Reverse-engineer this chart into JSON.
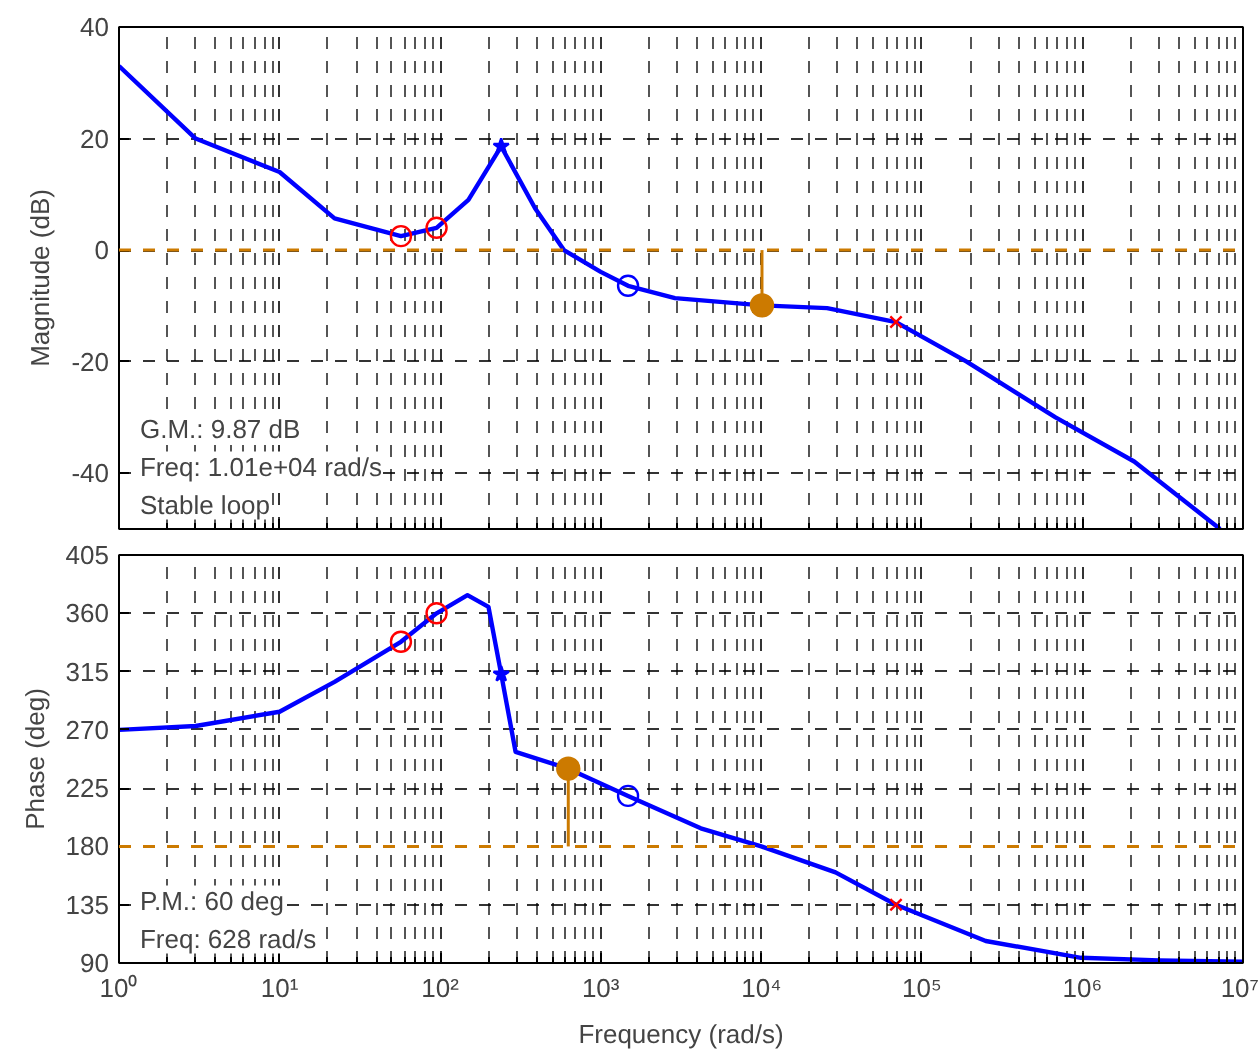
{
  "chart_data": [
    {
      "type": "line",
      "ylabel": "Magnitude (dB)",
      "xlim": [
        1,
        10000000
      ],
      "ylim": [
        -50,
        40
      ],
      "log": "x",
      "grid": true,
      "tick_labels": "y",
      "xticks": [
        {
          "value": 1,
          "label": null
        },
        {
          "value": 10,
          "label": null
        },
        {
          "value": 100,
          "label": null
        },
        {
          "value": 1000,
          "label": null
        },
        {
          "value": 10000,
          "label": null
        },
        {
          "value": 100000,
          "label": null
        },
        {
          "value": 1000000,
          "label": null
        },
        {
          "value": 10000000,
          "label": null
        }
      ],
      "yticks": [
        -40,
        -20,
        0,
        20,
        40
      ],
      "ref_lines": [
        {
          "axis": "y",
          "value": 0,
          "color": "#cc7a00",
          "line_style": "dashed"
        }
      ],
      "annotations": [
        "G.M.: 9.87 dB",
        "Freq: 1.01e+04 rad/s",
        "Stable loop"
      ],
      "series": [
        {
          "color": "#0000ff",
          "x": [
            1,
            3,
            10,
            22,
            57,
            95,
            150,
            240,
            390,
            590,
            1000,
            1480,
            2900,
            10100,
            25700,
            69000,
            190000,
            680000,
            2100000,
            7200000
          ],
          "values": [
            33,
            20,
            14,
            5.7,
            2.5,
            4,
            9,
            18.6,
            7.5,
            0,
            -3.9,
            -6.4,
            -8.6,
            -9.9,
            -10.4,
            -12.9,
            -20,
            -30,
            -37.9,
            -50
          ]
        },
        {
          "type": "scatter",
          "marker": "circle",
          "color": "#ff0000",
          "x": [
            57,
            95
          ],
          "values": [
            2.5,
            4
          ]
        },
        {
          "type": "scatter",
          "marker": "star",
          "color": "#0000ff",
          "x": [
            240
          ],
          "values": [
            18.6
          ]
        },
        {
          "type": "scatter",
          "marker": "circle",
          "color": "#0000ff",
          "x": [
            1480
          ],
          "values": [
            -6.4
          ]
        },
        {
          "type": "scatter",
          "marker": "cross",
          "color": "#ff0000",
          "x": [
            69000
          ],
          "values": [
            -12.9
          ]
        },
        {
          "type": "scatter",
          "marker": "circle",
          "color": "#cc7a00",
          "x": [
            10100
          ],
          "values": [
            -9.9
          ],
          "errors": [
            [
              -9.9,
              0
            ]
          ]
        }
      ]
    },
    {
      "type": "line",
      "ylabel": "Phase (deg)",
      "xlabel": "Frequency (rad/s)",
      "xlim": [
        1,
        10000000
      ],
      "ylim": [
        90,
        405
      ],
      "log": "x",
      "grid": true,
      "xticks": [
        {
          "value": 1,
          "label": "10⁰"
        },
        {
          "value": 10,
          "label": "10¹"
        },
        {
          "value": 100,
          "label": "10²"
        },
        {
          "value": 1000,
          "label": "10³"
        },
        {
          "value": 10000,
          "label": "10⁴"
        },
        {
          "value": 100000,
          "label": "10⁵"
        },
        {
          "value": 1000000,
          "label": "10⁶"
        },
        {
          "value": 10000000,
          "label": "10⁷"
        }
      ],
      "yticks": [
        90,
        135,
        180,
        225,
        270,
        315,
        360,
        405
      ],
      "ref_lines": [
        {
          "axis": "y",
          "value": 180,
          "color": "#cc7a00",
          "line_style": "dashed"
        }
      ],
      "annotations": [
        "P.M.: 60 deg",
        "Freq: 628 rad/s"
      ],
      "series": [
        {
          "color": "#0000ff",
          "x": [
            1,
            3,
            10,
            22,
            57,
            95,
            148,
            200,
            240,
            295,
            628,
            1480,
            4200,
            10000,
            29000,
            69000,
            250000,
            980000,
            3000000,
            10000000
          ],
          "values": [
            270,
            273,
            284,
            307,
            338,
            360,
            374,
            365,
            313,
            253,
            240,
            219,
            194,
            180,
            160,
            135,
            107,
            94,
            92,
            91
          ]
        },
        {
          "type": "scatter",
          "marker": "circle",
          "color": "#ff0000",
          "x": [
            57,
            95
          ],
          "values": [
            338,
            360
          ]
        },
        {
          "type": "scatter",
          "marker": "star",
          "color": "#0000ff",
          "x": [
            240
          ],
          "values": [
            313
          ]
        },
        {
          "type": "scatter",
          "marker": "circle",
          "color": "#0000ff",
          "x": [
            1480
          ],
          "values": [
            219
          ]
        },
        {
          "type": "scatter",
          "marker": "cross",
          "color": "#ff0000",
          "x": [
            69000
          ],
          "values": [
            135
          ]
        },
        {
          "type": "scatter",
          "marker": "circle",
          "color": "#cc7a00",
          "x": [
            628
          ],
          "values": [
            240
          ],
          "errors": [
            [
              180,
              240
            ]
          ]
        }
      ]
    }
  ]
}
